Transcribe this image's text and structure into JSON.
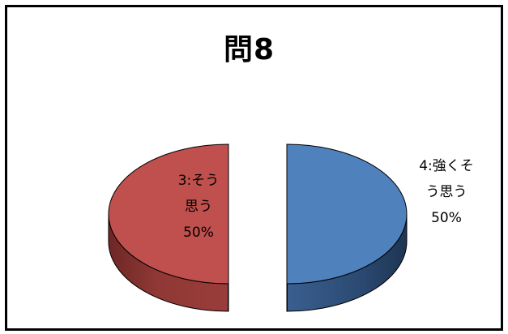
{
  "chart_data": {
    "type": "pie",
    "title": "問8",
    "style": "3d-exploded",
    "categories": [
      "4:強くそう思う",
      "3:そう思う"
    ],
    "values": [
      50,
      50
    ],
    "value_unit": "%",
    "colors": [
      "#4f81bd",
      "#c0504d"
    ],
    "slices": [
      {
        "category": "4:強くそう思う",
        "value": 50,
        "label_lines": [
          "4:強くそ",
          "う思う",
          "50%"
        ],
        "color": "#4f81bd",
        "side_color": "#2b4a73"
      },
      {
        "category": "3:そう思う",
        "value": 50,
        "label_lines": [
          "3:そう",
          "思う",
          "50%"
        ],
        "color": "#c0504d",
        "side_color": "#7d2e2c"
      }
    ],
    "legend": "none"
  }
}
